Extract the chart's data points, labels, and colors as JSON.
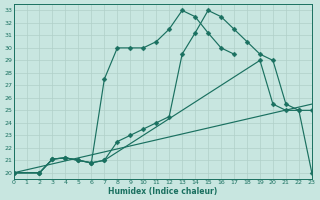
{
  "xlabel": "Humidex (Indice chaleur)",
  "background_color": "#c8e6e0",
  "line_color": "#1a7060",
  "grid_color": "#b0d0c8",
  "xlim": [
    0,
    23
  ],
  "ylim": [
    19.5,
    33.5
  ],
  "yticks": [
    20,
    21,
    22,
    23,
    24,
    25,
    26,
    27,
    28,
    29,
    30,
    31,
    32,
    33
  ],
  "xticks": [
    0,
    1,
    2,
    3,
    4,
    5,
    6,
    7,
    8,
    9,
    10,
    11,
    12,
    13,
    14,
    15,
    16,
    17,
    18,
    19,
    20,
    21,
    22,
    23
  ],
  "line1_x": [
    0,
    2,
    3,
    4,
    5,
    6,
    7,
    8,
    9,
    10,
    11,
    12,
    13,
    14,
    15,
    16,
    17
  ],
  "line1_y": [
    20,
    20,
    21.1,
    21.2,
    21.0,
    20.8,
    27.5,
    30.0,
    30.0,
    30.0,
    30.5,
    31.5,
    33.0,
    32.5,
    31.2,
    30.0,
    29.5
  ],
  "line2_x": [
    0,
    2,
    3,
    4,
    5,
    6,
    7,
    8,
    9,
    10,
    11,
    12,
    13,
    14,
    15,
    16,
    17,
    18,
    19,
    20,
    21,
    22,
    23
  ],
  "line2_y": [
    20,
    20,
    21.1,
    21.2,
    21.0,
    20.8,
    21.0,
    22.5,
    23.0,
    23.5,
    24.0,
    24.5,
    29.5,
    31.2,
    33.0,
    32.5,
    31.5,
    30.5,
    29.5,
    29.0,
    25.5,
    25.0,
    25.0
  ],
  "line3_x": [
    0,
    2,
    3,
    4,
    5,
    6,
    7,
    19,
    20,
    21,
    22,
    23
  ],
  "line3_y": [
    20,
    20,
    21.1,
    21.2,
    21.0,
    20.8,
    21.0,
    29.0,
    25.5,
    25.0,
    25.0,
    20
  ],
  "line4_x": [
    0,
    23
  ],
  "line4_y": [
    20,
    25.5
  ],
  "markersize": 2.5
}
